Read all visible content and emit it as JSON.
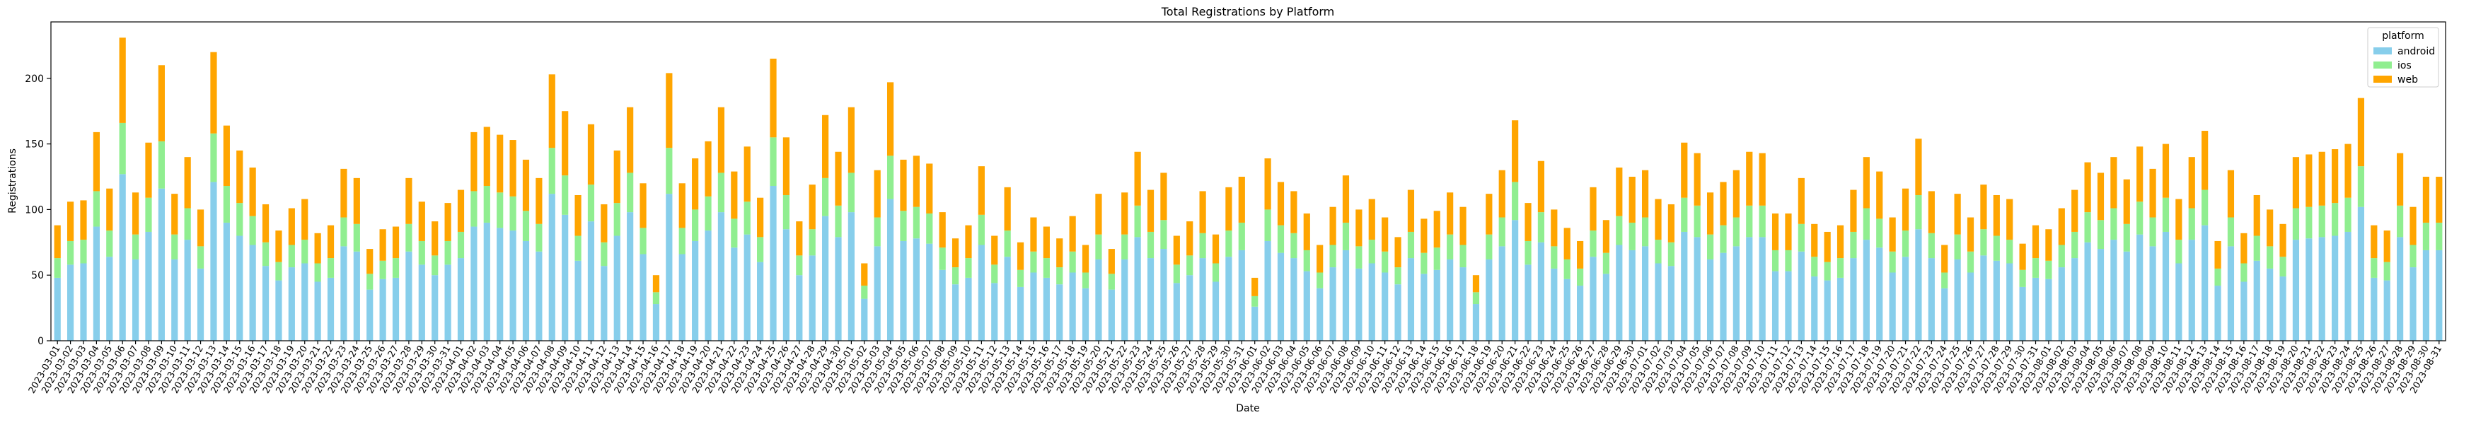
{
  "chart_data": {
    "type": "stacked_bar",
    "title": "Total Registrations by Platform",
    "x_label": "Date",
    "y_label": "Registrations",
    "legend_title": "platform",
    "legend_position": "upper right",
    "categories": [
      "2023-03-01",
      "2023-03-02",
      "2023-03-03",
      "2023-03-04",
      "2023-03-05",
      "2023-03-06",
      "2023-03-07",
      "2023-03-08",
      "2023-03-09",
      "2023-03-10",
      "2023-03-11",
      "2023-03-12",
      "2023-03-13",
      "2023-03-14",
      "2023-03-15",
      "2023-03-16",
      "2023-03-17",
      "2023-03-18",
      "2023-03-19",
      "2023-03-20",
      "2023-03-21",
      "2023-03-22",
      "2023-03-23",
      "2023-03-24",
      "2023-03-25",
      "2023-03-26",
      "2023-03-27",
      "2023-03-28",
      "2023-03-29",
      "2023-03-30",
      "2023-03-31",
      "2023-04-01",
      "2023-04-02",
      "2023-04-03",
      "2023-04-04",
      "2023-04-05",
      "2023-04-06",
      "2023-04-07",
      "2023-04-08",
      "2023-04-09",
      "2023-04-10",
      "2023-04-11",
      "2023-04-12",
      "2023-04-13",
      "2023-04-14",
      "2023-04-15",
      "2023-04-16",
      "2023-04-17",
      "2023-04-18",
      "2023-04-19",
      "2023-04-20",
      "2023-04-21",
      "2023-04-22",
      "2023-04-23",
      "2023-04-24",
      "2023-04-25",
      "2023-04-26",
      "2023-04-27",
      "2023-04-28",
      "2023-04-29",
      "2023-04-30",
      "2023-05-01",
      "2023-05-02",
      "2023-05-03",
      "2023-05-04",
      "2023-05-05",
      "2023-05-06",
      "2023-05-07",
      "2023-05-08",
      "2023-05-09",
      "2023-05-10",
      "2023-05-11",
      "2023-05-12",
      "2023-05-13",
      "2023-05-14",
      "2023-05-15",
      "2023-05-16",
      "2023-05-17",
      "2023-05-18",
      "2023-05-19",
      "2023-05-20",
      "2023-05-21",
      "2023-05-22",
      "2023-05-23",
      "2023-05-24",
      "2023-05-25",
      "2023-05-26",
      "2023-05-27",
      "2023-05-28",
      "2023-05-29",
      "2023-05-30",
      "2023-05-31",
      "2023-06-01",
      "2023-06-02",
      "2023-06-03",
      "2023-06-04",
      "2023-06-05",
      "2023-06-06",
      "2023-06-07",
      "2023-06-08",
      "2023-06-09",
      "2023-06-10",
      "2023-06-11",
      "2023-06-12",
      "2023-06-13",
      "2023-06-14",
      "2023-06-15",
      "2023-06-16",
      "2023-06-17",
      "2023-06-18",
      "2023-06-19",
      "2023-06-20",
      "2023-06-21",
      "2023-06-22",
      "2023-06-23",
      "2023-06-24",
      "2023-06-25",
      "2023-06-26",
      "2023-06-27",
      "2023-06-28",
      "2023-06-29",
      "2023-06-30",
      "2023-07-01",
      "2023-07-02",
      "2023-07-03",
      "2023-07-04",
      "2023-07-05",
      "2023-07-06",
      "2023-07-07",
      "2023-07-08",
      "2023-07-09",
      "2023-07-10",
      "2023-07-11",
      "2023-07-12",
      "2023-07-13",
      "2023-07-14",
      "2023-07-15",
      "2023-07-16",
      "2023-07-17",
      "2023-07-18",
      "2023-07-19",
      "2023-07-20",
      "2023-07-21",
      "2023-07-22",
      "2023-07-23",
      "2023-07-24",
      "2023-07-25",
      "2023-07-26",
      "2023-07-27",
      "2023-07-28",
      "2023-07-29",
      "2023-07-30",
      "2023-07-31",
      "2023-08-01",
      "2023-08-02",
      "2023-08-03",
      "2023-08-04",
      "2023-08-05",
      "2023-08-06",
      "2023-08-07",
      "2023-08-08",
      "2023-08-09",
      "2023-08-10",
      "2023-08-11",
      "2023-08-12",
      "2023-08-13",
      "2023-08-14",
      "2023-08-15",
      "2023-08-16",
      "2023-08-17",
      "2023-08-18",
      "2023-08-19",
      "2023-08-20",
      "2023-08-21",
      "2023-08-22",
      "2023-08-23",
      "2023-08-24",
      "2023-08-25",
      "2023-08-26",
      "2023-08-27",
      "2023-08-28",
      "2023-08-29",
      "2023-08-30",
      "2023-08-31"
    ],
    "series": [
      {
        "name": "android",
        "color": "#87ceeb",
        "values": [
          48,
          58,
          59,
          87,
          64,
          127,
          62,
          83,
          116,
          62,
          77,
          55,
          121,
          90,
          80,
          73,
          57,
          46,
          56,
          59,
          45,
          48,
          72,
          68,
          39,
          47,
          48,
          68,
          58,
          50,
          58,
          63,
          87,
          90,
          86,
          84,
          76,
          68,
          112,
          96,
          61,
          91,
          57,
          80,
          98,
          66,
          28,
          112,
          66,
          76,
          84,
          98,
          71,
          81,
          60,
          118,
          85,
          50,
          65,
          95,
          79,
          98,
          32,
          72,
          108,
          76,
          78,
          74,
          54,
          43,
          48,
          73,
          44,
          64,
          41,
          52,
          48,
          43,
          52,
          40,
          62,
          39,
          62,
          79,
          63,
          70,
          44,
          50,
          63,
          45,
          64,
          69,
          26,
          76,
          67,
          63,
          53,
          40,
          56,
          69,
          55,
          59,
          52,
          43,
          63,
          51,
          54,
          62,
          56,
          28,
          62,
          72,
          92,
          58,
          75,
          55,
          47,
          42,
          64,
          51,
          73,
          69,
          72,
          59,
          57,
          83,
          79,
          62,
          67,
          72,
          79,
          79,
          53,
          53,
          68,
          49,
          46,
          48,
          63,
          77,
          71,
          52,
          64,
          85,
          63,
          40,
          62,
          52,
          65,
          61,
          59,
          41,
          48,
          47,
          56,
          63,
          75,
          70,
          77,
          68,
          81,
          72,
          83,
          59,
          77,
          88,
          42,
          72,
          45,
          61,
          55,
          49,
          77,
          78,
          79,
          80,
          83,
          102,
          48,
          46,
          79,
          56,
          69,
          69
        ]
      },
      {
        "name": "ios",
        "color": "#90ee90",
        "values": [
          15,
          18,
          18,
          27,
          20,
          39,
          19,
          26,
          36,
          19,
          24,
          17,
          37,
          28,
          25,
          22,
          18,
          14,
          17,
          18,
          14,
          15,
          22,
          21,
          12,
          14,
          15,
          21,
          18,
          15,
          18,
          20,
          27,
          28,
          27,
          26,
          23,
          21,
          35,
          30,
          19,
          28,
          18,
          25,
          30,
          20,
          9,
          35,
          20,
          24,
          26,
          30,
          22,
          25,
          19,
          37,
          26,
          15,
          20,
          29,
          24,
          30,
          10,
          22,
          33,
          23,
          24,
          23,
          17,
          13,
          15,
          23,
          14,
          20,
          13,
          16,
          15,
          13,
          16,
          12,
          19,
          12,
          19,
          24,
          20,
          22,
          14,
          15,
          19,
          14,
          20,
          21,
          8,
          24,
          21,
          19,
          16,
          12,
          17,
          21,
          17,
          18,
          16,
          13,
          20,
          16,
          17,
          19,
          17,
          9,
          19,
          22,
          29,
          18,
          23,
          17,
          15,
          13,
          20,
          16,
          22,
          21,
          22,
          18,
          18,
          26,
          24,
          19,
          21,
          22,
          24,
          24,
          16,
          16,
          21,
          15,
          14,
          15,
          20,
          24,
          22,
          16,
          20,
          26,
          19,
          12,
          19,
          16,
          20,
          19,
          18,
          13,
          15,
          14,
          17,
          20,
          23,
          22,
          24,
          21,
          25,
          22,
          26,
          18,
          24,
          27,
          13,
          22,
          14,
          19,
          17,
          15,
          24,
          24,
          24,
          25,
          26,
          31,
          15,
          14,
          24,
          17,
          21,
          21
        ]
      },
      {
        "name": "web",
        "color": "#ffa500",
        "values": [
          25,
          30,
          30,
          45,
          32,
          65,
          32,
          42,
          58,
          31,
          39,
          28,
          62,
          46,
          40,
          37,
          29,
          24,
          28,
          31,
          23,
          25,
          37,
          35,
          19,
          24,
          24,
          35,
          30,
          26,
          29,
          32,
          45,
          45,
          44,
          43,
          39,
          35,
          56,
          49,
          31,
          46,
          29,
          40,
          50,
          34,
          13,
          57,
          34,
          39,
          42,
          50,
          36,
          42,
          30,
          60,
          44,
          26,
          34,
          48,
          41,
          50,
          17,
          36,
          56,
          39,
          39,
          38,
          27,
          22,
          25,
          37,
          22,
          33,
          21,
          26,
          24,
          22,
          27,
          21,
          31,
          19,
          32,
          41,
          32,
          36,
          22,
          26,
          32,
          22,
          33,
          35,
          14,
          39,
          33,
          32,
          28,
          21,
          29,
          36,
          28,
          31,
          26,
          23,
          32,
          26,
          28,
          32,
          29,
          13,
          31,
          36,
          47,
          29,
          39,
          28,
          24,
          21,
          33,
          25,
          37,
          35,
          36,
          31,
          29,
          42,
          40,
          32,
          33,
          36,
          41,
          40,
          28,
          28,
          35,
          25,
          23,
          25,
          32,
          39,
          36,
          26,
          32,
          43,
          32,
          21,
          31,
          26,
          34,
          31,
          31,
          20,
          25,
          24,
          28,
          32,
          38,
          36,
          39,
          34,
          42,
          37,
          41,
          31,
          39,
          45,
          21,
          36,
          23,
          31,
          28,
          25,
          39,
          40,
          41,
          41,
          41,
          52,
          25,
          24,
          40,
          29,
          35,
          35
        ]
      }
    ],
    "ylim": [
      0,
      243
    ],
    "yticks": [
      0,
      50,
      100,
      150,
      200
    ],
    "grid": false
  }
}
